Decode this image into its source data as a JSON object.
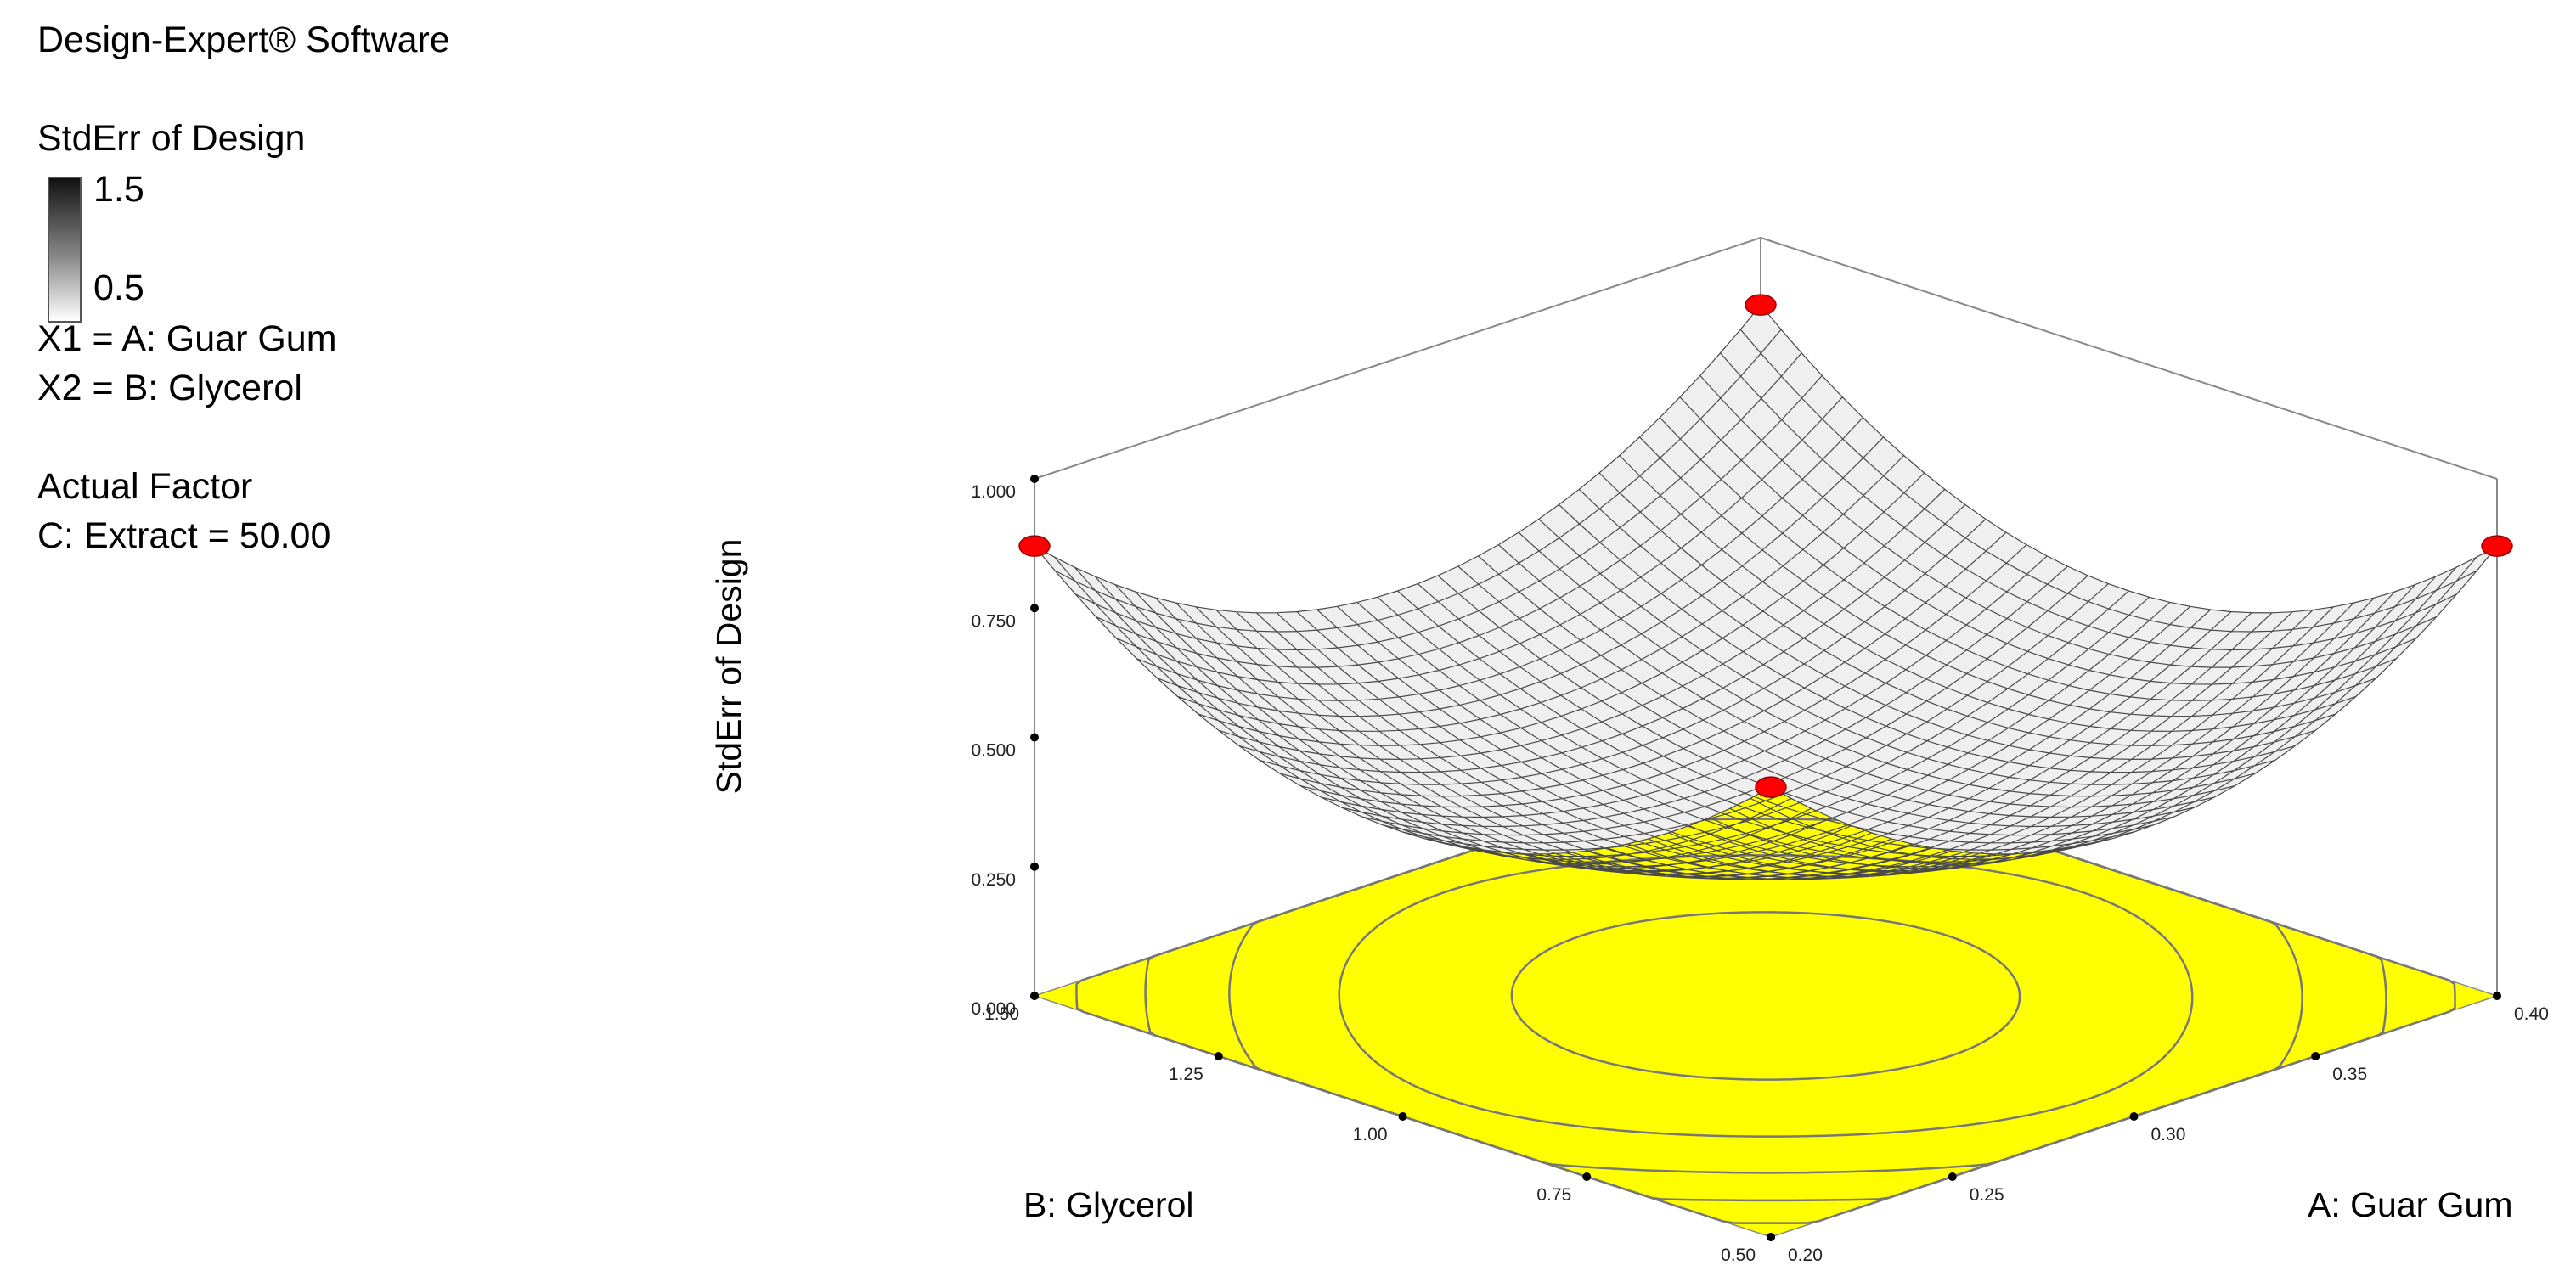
{
  "panel": {
    "software": "Design-Expert® Software",
    "response_label": "StdErr of Design",
    "legend_max": "1.5",
    "legend_min": "0.5",
    "x1": "X1 = A: Guar Gum",
    "x2": "X2 = B: Glycerol",
    "factor_title": "Actual Factor",
    "factor_value": "C: Extract = 50.00"
  },
  "colors": {
    "surface_fill": "#efefef",
    "mesh_line": "#4a4a4a",
    "contour_fill": "#ffff00",
    "contour_line": "#777777",
    "design_point": "#ff0000"
  },
  "chart_data": {
    "type": "surface3d",
    "zlabel": "StdErr of Design",
    "xlabel": "A: Guar Gum",
    "ylabel": "B: Glycerol",
    "x_range": [
      0.2,
      0.4
    ],
    "y_range": [
      0.5,
      1.5
    ],
    "z_range": [
      0.0,
      1.0
    ],
    "x_ticks": [
      "0.20",
      "0.25",
      "0.30",
      "0.35",
      "0.40"
    ],
    "y_ticks": [
      "0.50",
      "0.75",
      "1.00",
      "1.25",
      "1.50"
    ],
    "z_ticks": [
      "0.000",
      "0.250",
      "0.500",
      "0.750",
      "1.000"
    ],
    "surface": {
      "z_center": 0.35,
      "z_edge_mid": 0.55,
      "z_corner": 0.87
    },
    "contour_levels": [
      0.4,
      0.5,
      0.6,
      0.7,
      0.8
    ],
    "design_points": [
      {
        "x": 0.2,
        "y": 1.5,
        "z": 0.87
      },
      {
        "x": 0.4,
        "y": 1.5,
        "z": 0.87
      },
      {
        "x": 0.4,
        "y": 0.5,
        "z": 0.87
      },
      {
        "x": 0.2,
        "y": 0.5,
        "z": 0.87
      }
    ]
  }
}
